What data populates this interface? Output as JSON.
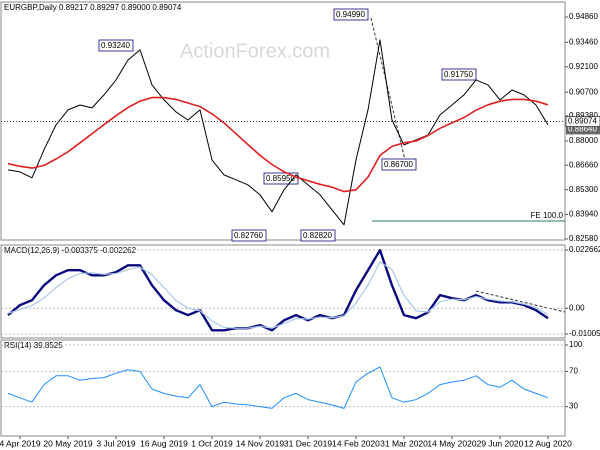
{
  "chart_data": [
    {
      "type": "line",
      "title": "EURGBP,Daily  0.89217 0.89297 0.89000 0.89074",
      "watermark": "ActionForex.com",
      "categories": [
        null,
        "4 Apr 2019",
        null,
        null,
        null,
        "20 May 2019",
        null,
        null,
        null,
        "3 Jul 2019",
        null,
        null,
        null,
        "16 Aug 2019",
        null,
        null,
        null,
        "1 Oct 2019",
        null,
        null,
        null,
        "14 Nov 2019",
        null,
        null,
        null,
        "31 Dec 2019",
        null,
        null,
        null,
        "14 Feb 2020",
        null,
        null,
        null,
        "31 Mar 2020",
        null,
        null,
        null,
        "14 May 2020",
        null,
        null,
        null,
        "29 Jun 2020",
        null,
        null,
        null,
        "12 Aug 2020"
      ],
      "series": [
        {
          "name": "Close",
          "color": "#000000",
          "values": [
            0.864,
            0.8629,
            0.8596,
            0.8751,
            0.8889,
            0.8972,
            0.8999,
            0.8983,
            0.9055,
            0.9138,
            0.9248,
            0.9304,
            0.911,
            0.9027,
            0.8961,
            0.8916,
            0.8972,
            0.8695,
            0.8612,
            0.8585,
            0.8557,
            0.8502,
            0.8408,
            0.8529,
            0.8612,
            0.8557,
            0.8502,
            0.8419,
            0.8336,
            0.8695,
            0.8972,
            0.9359,
            0.8916,
            0.8778,
            0.8806,
            0.8833,
            0.8944,
            0.8999,
            0.9055,
            0.9138,
            0.911,
            0.9027,
            0.9082,
            0.9055,
            0.8999,
            0.8889
          ]
        },
        {
          "name": "MA",
          "color": "#e02020",
          "values": [
            0.8675,
            0.866,
            0.865,
            0.8665,
            0.87,
            0.874,
            0.879,
            0.884,
            0.889,
            0.894,
            0.8985,
            0.902,
            0.904,
            0.904,
            0.903,
            0.901,
            0.899,
            0.895,
            0.89,
            0.884,
            0.878,
            0.872,
            0.867,
            0.863,
            0.86,
            0.858,
            0.856,
            0.8545,
            0.852,
            0.853,
            0.86,
            0.872,
            0.877,
            0.879,
            0.88,
            0.883,
            0.887,
            0.89,
            0.893,
            0.897,
            0.9,
            0.902,
            0.903,
            0.903,
            0.902,
            0.9
          ]
        }
      ],
      "ylim": [
        0.8252,
        0.9569
      ],
      "yticks": [
        {
          "value": 0.9486,
          "label": "0.94860"
        },
        {
          "value": 0.9346,
          "label": "0.93460"
        },
        {
          "value": 0.921,
          "label": "0.92100"
        },
        {
          "value": 0.907,
          "label": "0.90700"
        },
        {
          "value": 0.8938,
          "label": "0.89380"
        },
        {
          "value": 0.88,
          "label": "0.88000"
        },
        {
          "value": 0.8666,
          "label": "0.86660"
        },
        {
          "value": 0.853,
          "label": "0.85300"
        },
        {
          "value": 0.8394,
          "label": "0.83940"
        },
        {
          "value": 0.8258,
          "label": "0.82580"
        }
      ],
      "last_price": 0.89074,
      "ma_price": {
        "value": 0.8864,
        "label": "0.88640"
      },
      "annotations": [
        "0.93240",
        "0.94990",
        "0.91750",
        "0.85950",
        "0.82760",
        "0.82820",
        "0.86700",
        "FE 100.0"
      ]
    },
    {
      "type": "line",
      "title": "MACD(12,26,9) -0.003375 -0.002262",
      "series": [
        {
          "name": "MACD",
          "color": "#0a0a80",
          "values": [
            -0.0027,
            0.0012,
            0.0031,
            0.0089,
            0.0128,
            0.0148,
            0.0148,
            0.0128,
            0.0128,
            0.014,
            0.0167,
            0.0167,
            0.0089,
            0.0031,
            -0.0008,
            -0.0027,
            -0.0008,
            -0.0086,
            -0.0086,
            -0.0078,
            -0.0078,
            -0.0066,
            -0.0086,
            -0.0047,
            -0.0027,
            -0.0047,
            -0.0027,
            -0.0039,
            -0.0027,
            0.007,
            0.0148,
            0.0226,
            0.0089,
            -0.0027,
            -0.0039,
            -0.0016,
            0.0051,
            0.0039,
            0.0031,
            0.0051,
            0.0031,
            0.0023,
            0.0023,
            0.0012,
            -0.0008,
            -0.0039
          ]
        },
        {
          "name": "Signal",
          "color": "#a8c8e8",
          "values": [
            -0.002,
            -0.0005,
            0.001,
            0.004,
            0.008,
            0.0115,
            0.0135,
            0.0138,
            0.0132,
            0.0135,
            0.015,
            0.016,
            0.013,
            0.008,
            0.003,
            0.0,
            -0.001,
            -0.005,
            -0.0075,
            -0.0078,
            -0.0078,
            -0.007,
            -0.0078,
            -0.006,
            -0.004,
            -0.0042,
            -0.0035,
            -0.0037,
            -0.003,
            0.002,
            0.009,
            0.018,
            0.015,
            0.005,
            -0.001,
            -0.0015,
            0.0025,
            0.0035,
            0.0033,
            0.0045,
            0.0035,
            0.0028,
            0.0025,
            0.0016,
            0.0002,
            -0.0025
          ]
        }
      ],
      "ylim": [
        -0.01161,
        0.02461
      ],
      "yticks": [
        0.022662,
        {
          "value": 0,
          "label": "0.00"
        },
        -0.010052
      ]
    },
    {
      "type": "line",
      "title": "RSI(14) 39.8525",
      "series": [
        {
          "name": "RSI",
          "color": "#1e90ff",
          "values": [
            45,
            40,
            35,
            55,
            65,
            65,
            60,
            62,
            63,
            68,
            72,
            70,
            50,
            45,
            42,
            40,
            55,
            30,
            35,
            33,
            32,
            30,
            28,
            40,
            45,
            38,
            35,
            32,
            28,
            58,
            68,
            75,
            40,
            35,
            38,
            45,
            55,
            58,
            60,
            65,
            55,
            52,
            60,
            50,
            45,
            40
          ]
        }
      ],
      "ylim": [
        -3.4,
        105.7
      ],
      "yticks": [
        100,
        70,
        30
      ]
    }
  ]
}
